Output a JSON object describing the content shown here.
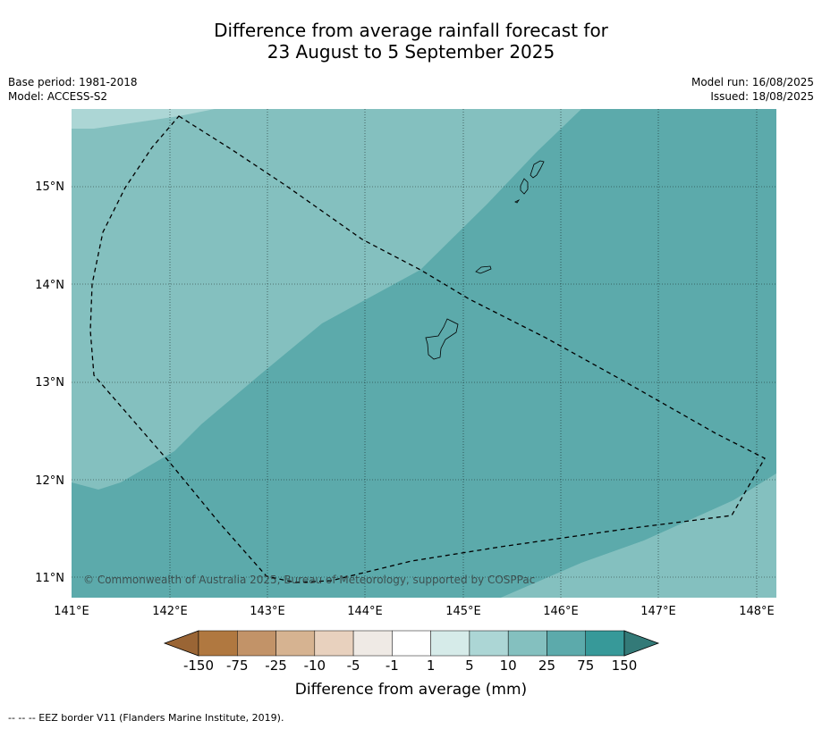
{
  "title_line1": "Difference from average rainfall forecast for",
  "title_line2": "23 August to 5 September 2025",
  "base_period": "Base period: 1981-2018",
  "model": "Model: ACCESS-S2",
  "model_run": "Model run: 16/08/2025",
  "issued": "Issued: 18/08/2025",
  "copyright": "© Commonwealth of Australia 2025, Bureau of Meteorology, supported by COSPPac",
  "lat_ticks": [
    "15°N",
    "14°N",
    "13°N",
    "12°N",
    "11°N"
  ],
  "lon_ticks": [
    "141°E",
    "142°E",
    "143°E",
    "144°E",
    "145°E",
    "146°E",
    "147°E",
    "148°E"
  ],
  "colorbar": {
    "labels": [
      "-150",
      "-75",
      "-25",
      "-10",
      "-5",
      "-1",
      "1",
      "5",
      "10",
      "25",
      "75",
      "150"
    ],
    "colors": [
      "#9a6535",
      "#b07840",
      "#c29368",
      "#d6b391",
      "#e8d1be",
      "#efeae5",
      "#ffffff",
      "#d6ebe9",
      "#acd6d5",
      "#84c0bf",
      "#5caaab",
      "#379999",
      "#337a78"
    ],
    "title": "Difference from average (mm)"
  },
  "footer": "-- -- -- EEZ border V11 (Flanders Marine Institute, 2019).",
  "map_colors": {
    "light": "#acd6d5",
    "mid": "#84c0bf",
    "dark": "#5caaab",
    "land": "#5caaab"
  }
}
